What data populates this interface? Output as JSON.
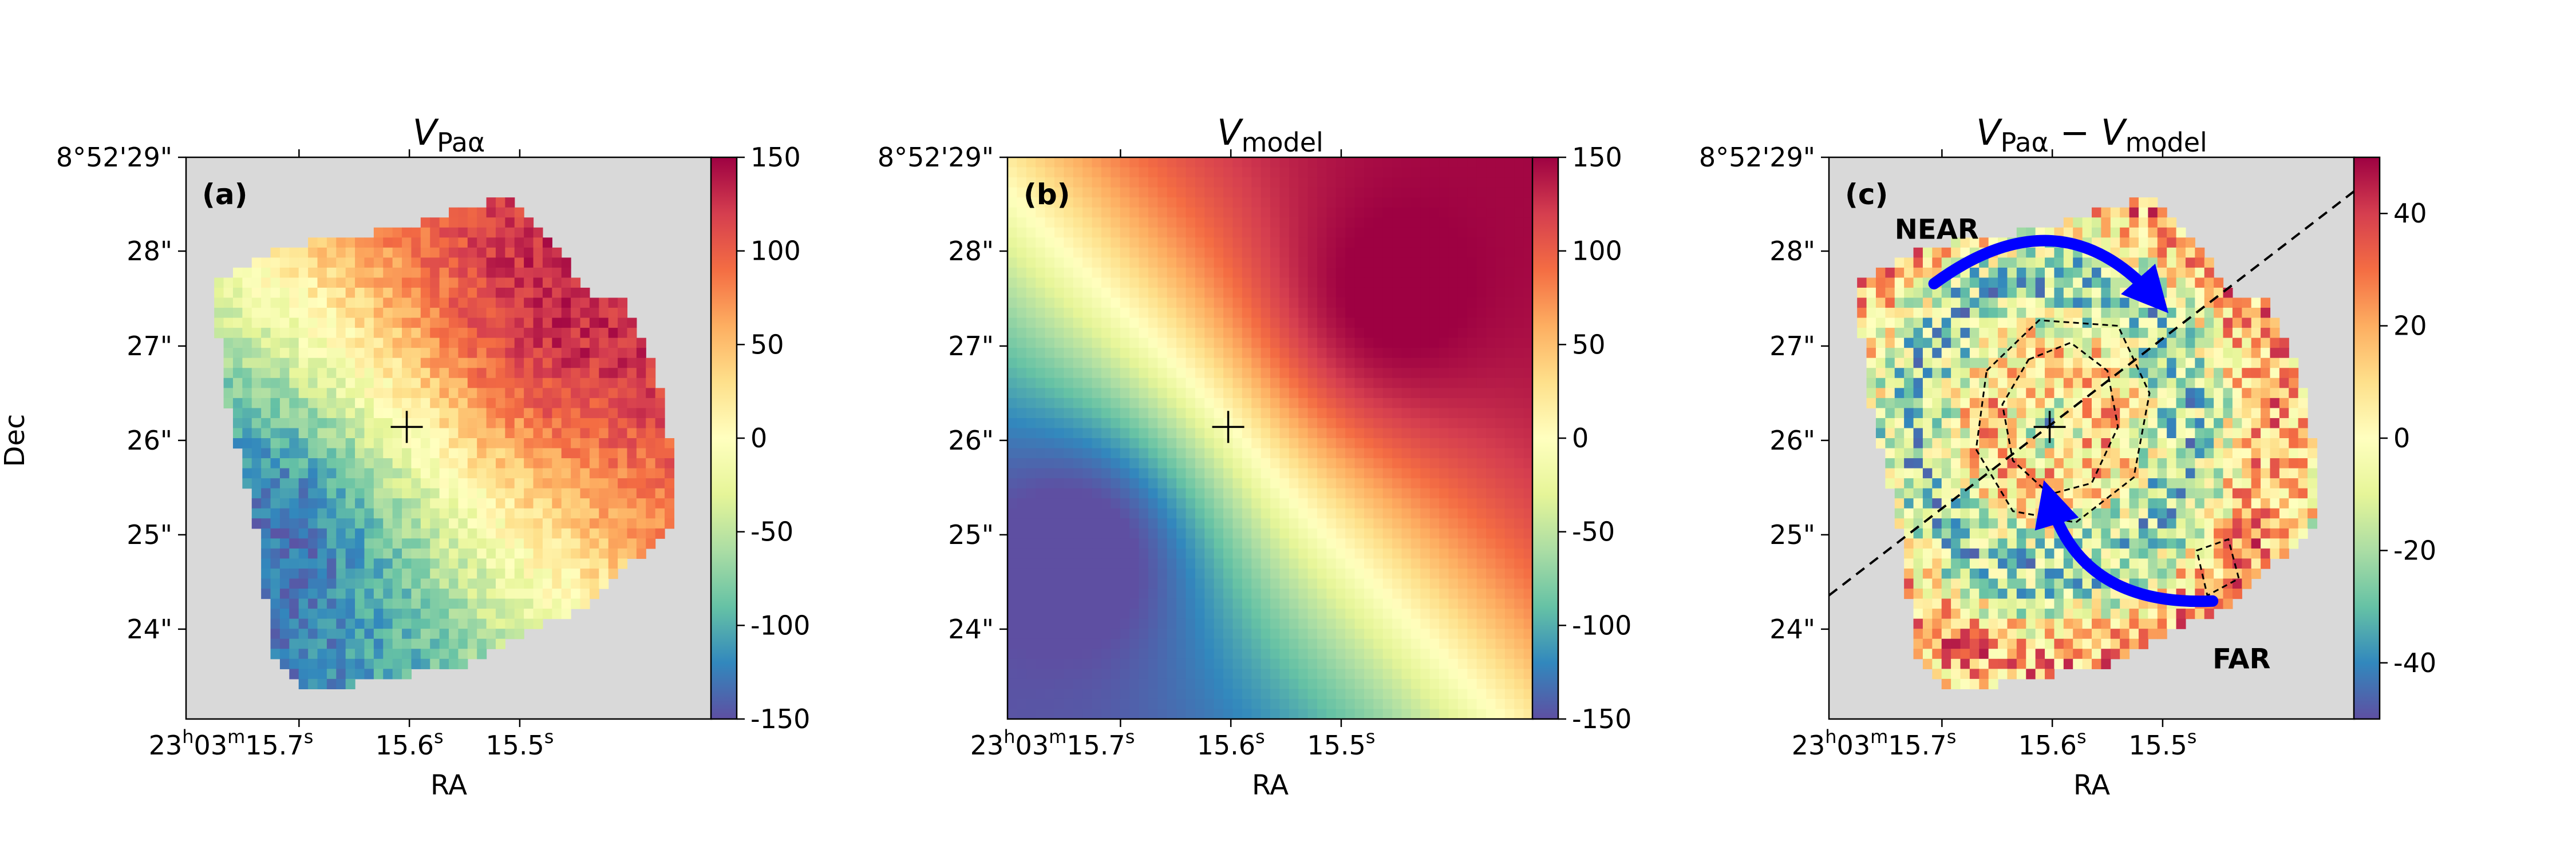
{
  "figure": {
    "ylabel": "Dec",
    "dec_ticks": [
      "8°52'29\"",
      "28\"",
      "27\"",
      "26\"",
      "25\"",
      "24\""
    ],
    "ra_ticks": [
      {
        "base": "23",
        "h": "h",
        "m_val": "03",
        "m": "m",
        "s_val": "15.7",
        "s": "s"
      },
      {
        "base": "",
        "h": "",
        "m_val": "",
        "m": "",
        "s_val": "15.6",
        "s": "s"
      },
      {
        "base": "",
        "h": "",
        "m_val": "",
        "m": "",
        "s_val": "15.5",
        "s": "s"
      }
    ],
    "xlabel": "RA"
  },
  "chart_data": [
    {
      "type": "heatmap",
      "panel": "(a)",
      "title": {
        "symbol": "V",
        "subscript": "Paα"
      },
      "colormap": "Spectral_r",
      "colorbar": {
        "range": [
          -150,
          150
        ],
        "ticks": [
          "150",
          "100",
          "50",
          "0",
          "-50",
          "-100",
          "-150"
        ]
      },
      "center_marker": "+",
      "background": "#d9d9d9"
    },
    {
      "type": "heatmap",
      "panel": "(b)",
      "title": {
        "symbol": "V",
        "subscript": "model"
      },
      "colormap": "Spectral_r",
      "colorbar": {
        "range": [
          -150,
          150
        ],
        "ticks": [
          "150",
          "100",
          "50",
          "0",
          "-50",
          "-100",
          "-150"
        ]
      },
      "center_marker": "+"
    },
    {
      "type": "heatmap",
      "panel": "(c)",
      "title": {
        "symbol": "V",
        "subscript": "Paα",
        "operator": " − ",
        "symbol2": "V",
        "subscript2": "model"
      },
      "colormap": "Spectral_r",
      "colorbar": {
        "range": [
          -50,
          50
        ],
        "ticks": [
          "40",
          "20",
          "0",
          "-20",
          "-40"
        ]
      },
      "center_marker": "+",
      "annotations": [
        "NEAR",
        "FAR"
      ],
      "arrow_color": "#0000ff",
      "background": "#d9d9d9"
    }
  ]
}
